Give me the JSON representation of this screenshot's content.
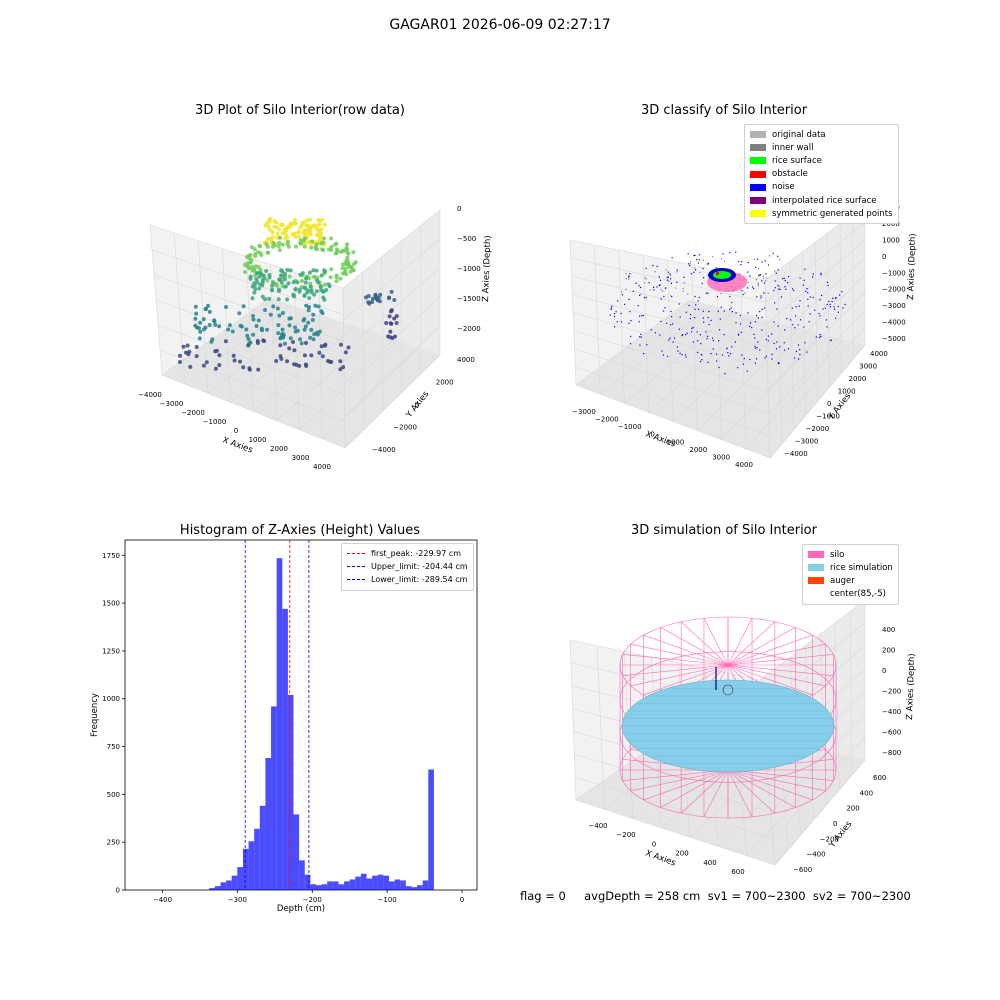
{
  "figure_title": "GAGAR01 2026-06-09 02:27:17",
  "footer_text": "flag = 0     avgDepth = 258 cm  sv1 = 700~2300  sv2 = 700~2300",
  "chart_data": [
    {
      "type": "scatter3d",
      "title": "3D Plot of Silo Interior(row data)",
      "xlabel": "X Axies",
      "ylabel": "Y Axies",
      "zlabel": "Z Axies (Depth)",
      "xticks": [
        "−4000",
        "−3000",
        "−2000",
        "−1000",
        "0",
        "1000",
        "2000",
        "3000",
        "4000"
      ],
      "yticks": [
        "−4000",
        "−2000",
        "0",
        "2000",
        "4000"
      ],
      "zticks": [
        "0",
        "−500",
        "−1000",
        "−1500",
        "−2000"
      ],
      "xlim": [
        -4000,
        4000
      ],
      "ylim": [
        -4000,
        4000
      ],
      "zlim": [
        -2300,
        0
      ],
      "colormap": "viridis"
    },
    {
      "type": "scatter3d",
      "title": "3D classify of Silo Interior",
      "xlabel": "X Axies",
      "ylabel": "Y Axies",
      "zlabel": "Z Axies (Depth)",
      "xticks": [
        "−3000",
        "−2000",
        "−1000",
        "0",
        "1000",
        "2000",
        "3000",
        "4000"
      ],
      "yticks": [
        "−4000",
        "−3000",
        "−2000",
        "−1000",
        "0",
        "1000",
        "2000",
        "3000",
        "4000"
      ],
      "zticks": [
        "2000",
        "1000",
        "0",
        "−1000",
        "−2000",
        "−3000",
        "−4000",
        "−5000"
      ],
      "legend": [
        {
          "label": "original data",
          "color": "#b3b3b3"
        },
        {
          "label": "inner wall",
          "color": "#808080"
        },
        {
          "label": "rice surface",
          "color": "#00ff00"
        },
        {
          "label": "obstacle",
          "color": "#ff0000"
        },
        {
          "label": "noise",
          "color": "#0000ff"
        },
        {
          "label": "interpolated rice surface",
          "color": "#800080"
        },
        {
          "label": "symmetric generated points",
          "color": "#ffff00"
        }
      ],
      "partial_tick": "3000"
    },
    {
      "type": "histogram",
      "title": "Histogram of Z-Axies (Height) Values",
      "xlabel": "Depth (cm)",
      "ylabel": "Frequency",
      "xlim": [
        -450,
        20
      ],
      "ylim": [
        0,
        1830
      ],
      "xticks": [
        -400,
        -300,
        -200,
        -100,
        0
      ],
      "xtick_labels": [
        "−400",
        "−300",
        "−200",
        "−100",
        "0"
      ],
      "yticks": [
        0,
        250,
        500,
        750,
        1000,
        1250,
        1500,
        1750
      ],
      "bar_color": "#0000ff",
      "bin_width": 7.5,
      "bins": [
        {
          "x": -337.5,
          "v": 10
        },
        {
          "x": -330,
          "v": 20
        },
        {
          "x": -322.5,
          "v": 40
        },
        {
          "x": -315,
          "v": 50
        },
        {
          "x": -307.5,
          "v": 75
        },
        {
          "x": -300,
          "v": 120
        },
        {
          "x": -292.5,
          "v": 215
        },
        {
          "x": -285,
          "v": 255
        },
        {
          "x": -277.5,
          "v": 320
        },
        {
          "x": -270,
          "v": 440
        },
        {
          "x": -262.5,
          "v": 690
        },
        {
          "x": -255,
          "v": 960
        },
        {
          "x": -247.5,
          "v": 1735
        },
        {
          "x": -240,
          "v": 1470
        },
        {
          "x": -232.5,
          "v": 1020
        },
        {
          "x": -225,
          "v": 395
        },
        {
          "x": -217.5,
          "v": 155
        },
        {
          "x": -210,
          "v": 80
        },
        {
          "x": -202.5,
          "v": 30
        },
        {
          "x": -195,
          "v": 25
        },
        {
          "x": -187.5,
          "v": 30
        },
        {
          "x": -180,
          "v": 45
        },
        {
          "x": -172.5,
          "v": 45
        },
        {
          "x": -165,
          "v": 30
        },
        {
          "x": -157.5,
          "v": 45
        },
        {
          "x": -150,
          "v": 55
        },
        {
          "x": -142.5,
          "v": 70
        },
        {
          "x": -135,
          "v": 85
        },
        {
          "x": -127.5,
          "v": 60
        },
        {
          "x": -120,
          "v": 75
        },
        {
          "x": -112.5,
          "v": 80
        },
        {
          "x": -105,
          "v": 75
        },
        {
          "x": -97.5,
          "v": 45
        },
        {
          "x": -90,
          "v": 55
        },
        {
          "x": -82.5,
          "v": 50
        },
        {
          "x": -75,
          "v": 20
        },
        {
          "x": -67.5,
          "v": 15
        },
        {
          "x": -60,
          "v": 25
        },
        {
          "x": -52.5,
          "v": 50
        },
        {
          "x": -45,
          "v": 630
        }
      ],
      "vlines": [
        {
          "label": "first_peak: -229.97 cm",
          "x": -229.97,
          "color": "#ff0000"
        },
        {
          "label": "Upper_limit: -204.44 cm",
          "x": -204.44,
          "color": "#0000ff"
        },
        {
          "label": "Lower_limit: -289.54 cm",
          "x": -289.54,
          "color": "#0000ff"
        }
      ]
    },
    {
      "type": "surface3d",
      "title": "3D simulation of Silo Interior",
      "xlabel": "X Axies",
      "ylabel": "Y Axies",
      "zlabel": "Z Axies (Depth)",
      "xticks": [
        "−400",
        "−200",
        "0",
        "200",
        "400",
        "600"
      ],
      "yticks": [
        "−600",
        "−400",
        "−200",
        "0",
        "200",
        "400",
        "600"
      ],
      "zticks": [
        "400",
        "200",
        "0",
        "−200",
        "−400",
        "−600",
        "−800"
      ],
      "legend": [
        {
          "label": "silo",
          "color": "#ff69b4"
        },
        {
          "label": "rice simulation",
          "color": "#87ceeb"
        },
        {
          "label": "auger",
          "color": "#ff4500"
        },
        {
          "label": "center(85,-5)",
          "color": "#ffffff"
        }
      ]
    }
  ]
}
